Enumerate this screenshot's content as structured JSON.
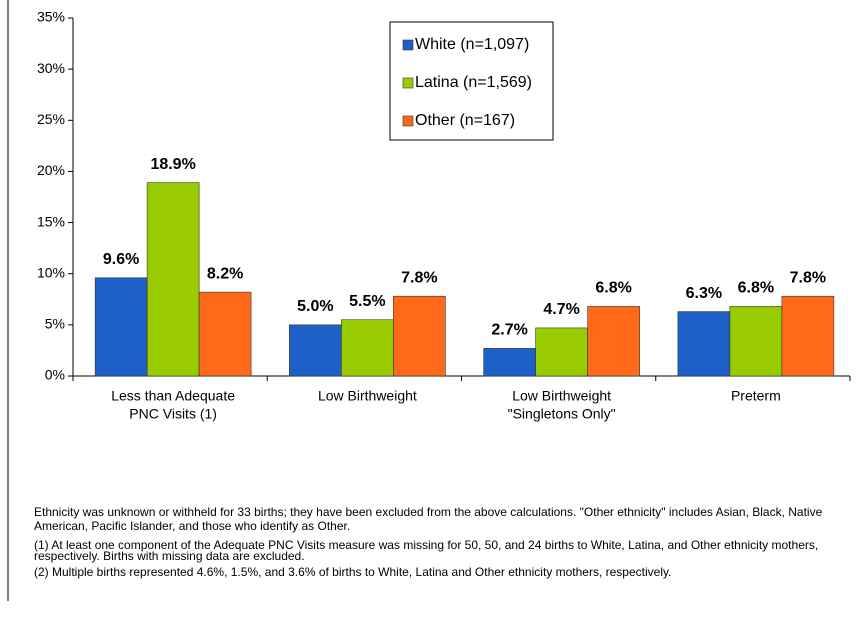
{
  "chart_data": {
    "type": "bar",
    "categories": [
      [
        "Less than Adequate",
        "PNC Visits (1)"
      ],
      [
        "Low Birthweight"
      ],
      [
        "Low Birthweight",
        "\"Singletons Only\""
      ],
      [
        "Preterm"
      ]
    ],
    "series": [
      {
        "name": "White (n=1,097)",
        "color": "#1f5fc8",
        "values": [
          9.6,
          5.0,
          2.7,
          6.3
        ],
        "value_labels": [
          "9.6%",
          "5.0%",
          "2.7%",
          "6.3%"
        ]
      },
      {
        "name": "Latina (n=1,569)",
        "color": "#99cc00",
        "values": [
          18.9,
          5.5,
          4.7,
          6.8
        ],
        "value_labels": [
          "18.9%",
          "5.5%",
          "4.7%",
          "6.8%"
        ]
      },
      {
        "name": "Other (n=167)",
        "color": "#ff6a1a",
        "values": [
          8.2,
          7.8,
          6.8,
          7.8
        ],
        "value_labels": [
          "8.2%",
          "7.8%",
          "6.8%",
          "7.8%"
        ]
      }
    ],
    "ylim": [
      0,
      35
    ],
    "yticks": [
      {
        "value": 0,
        "label": "0%"
      },
      {
        "value": 5,
        "label": "5%"
      },
      {
        "value": 10,
        "label": "10%"
      },
      {
        "value": 15,
        "label": "15%"
      },
      {
        "value": 20,
        "label": "20%"
      },
      {
        "value": 25,
        "label": "25%"
      },
      {
        "value": 30,
        "label": "30%"
      },
      {
        "value": 35,
        "label": "35%"
      }
    ],
    "legend": "top-center",
    "notes": [
      "Ethnicity was unknown or withheld for 33 births; they have been excluded from the above calculations.  \"Other ethnicity\" includes Asian, Black, Native American, Pacific Islander, and those who identify as Other.",
      "(1) At least one component of the Adequate PNC Visits measure was missing for 50, 50, and 24 births to White, Latina, and Other ethnicity mothers, respectively.  Births with missing data are excluded.",
      "(2) Multiple births represented 4.6%, 1.5%, and 3.6% of births to White, Latina and Other ethnicity mothers, respectively."
    ]
  }
}
